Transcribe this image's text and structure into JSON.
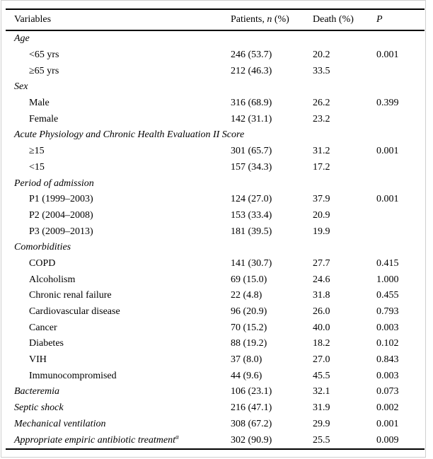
{
  "figure": {
    "background": "#ffffff",
    "rule_color": "#000000",
    "frame_color": "#cfcfcf"
  },
  "table": {
    "header": {
      "variables": "Variables",
      "patients_pre": "Patients, ",
      "patients_n": "n",
      "patients_post": " (%)",
      "death": "Death (%)",
      "p": "P"
    },
    "rows": [
      {
        "label": "Age",
        "style": "category",
        "patients": "",
        "death": "",
        "p": "",
        "sup": ""
      },
      {
        "label": "<65 yrs",
        "style": "sub",
        "patients": "246 (53.7)",
        "death": "20.2",
        "p": "0.001",
        "sup": ""
      },
      {
        "label": "≥65 yrs",
        "style": "sub",
        "patients": "212 (46.3)",
        "death": "33.5",
        "p": "",
        "sup": ""
      },
      {
        "label": "Sex",
        "style": "category",
        "patients": "",
        "death": "",
        "p": "",
        "sup": ""
      },
      {
        "label": "Male",
        "style": "sub",
        "patients": "316 (68.9)",
        "death": "26.2",
        "p": "0.399",
        "sup": ""
      },
      {
        "label": "Female",
        "style": "sub",
        "patients": "142 (31.1)",
        "death": "23.2",
        "p": "",
        "sup": ""
      },
      {
        "label": "Acute Physiology and Chronic Health Evaluation II Score",
        "style": "category",
        "patients": "",
        "death": "",
        "p": "",
        "sup": ""
      },
      {
        "label": "≥15",
        "style": "sub",
        "patients": "301 (65.7)",
        "death": "31.2",
        "p": "0.001",
        "sup": ""
      },
      {
        "label": "<15",
        "style": "sub",
        "patients": "157 (34.3)",
        "death": "17.2",
        "p": "",
        "sup": ""
      },
      {
        "label": "Period of admission",
        "style": "category",
        "patients": "",
        "death": "",
        "p": "",
        "sup": ""
      },
      {
        "label": "P1 (1999–2003)",
        "style": "sub",
        "patients": "124 (27.0)",
        "death": "37.9",
        "p": "0.001",
        "sup": ""
      },
      {
        "label": "P2 (2004–2008)",
        "style": "sub",
        "patients": "153 (33.4)",
        "death": "20.9",
        "p": "",
        "sup": ""
      },
      {
        "label": "P3 (2009–2013)",
        "style": "sub",
        "patients": "181 (39.5)",
        "death": "19.9",
        "p": "",
        "sup": ""
      },
      {
        "label": "Comorbidities",
        "style": "category",
        "patients": "",
        "death": "",
        "p": "",
        "sup": ""
      },
      {
        "label": "COPD",
        "style": "sub",
        "patients": "141 (30.7)",
        "death": "27.7",
        "p": "0.415",
        "sup": ""
      },
      {
        "label": "Alcoholism",
        "style": "sub",
        "patients": "69 (15.0)",
        "death": "24.6",
        "p": "1.000",
        "sup": ""
      },
      {
        "label": "Chronic renal failure",
        "style": "sub",
        "patients": "22 (4.8)",
        "death": "31.8",
        "p": "0.455",
        "sup": ""
      },
      {
        "label": "Cardiovascular disease",
        "style": "sub",
        "patients": "96 (20.9)",
        "death": "26.0",
        "p": "0.793",
        "sup": ""
      },
      {
        "label": "Cancer",
        "style": "sub",
        "patients": "70 (15.2)",
        "death": "40.0",
        "p": "0.003",
        "sup": ""
      },
      {
        "label": "Diabetes",
        "style": "sub",
        "patients": "88 (19.2)",
        "death": "18.2",
        "p": "0.102",
        "sup": ""
      },
      {
        "label": "VIH",
        "style": "sub",
        "patients": "37 (8.0)",
        "death": "27.0",
        "p": "0.843",
        "sup": ""
      },
      {
        "label": "Immunocompromised",
        "style": "sub",
        "patients": "44 (9.6)",
        "death": "45.5",
        "p": "0.003",
        "sup": ""
      },
      {
        "label": "Bacteremia",
        "style": "main",
        "patients": "106 (23.1)",
        "death": "32.1",
        "p": "0.073",
        "sup": ""
      },
      {
        "label": "Septic shock",
        "style": "main",
        "patients": "216 (47.1)",
        "death": "31.9",
        "p": "0.002",
        "sup": ""
      },
      {
        "label": "Mechanical ventilation",
        "style": "main",
        "patients": "308 (67.2)",
        "death": "29.9",
        "p": "0.001",
        "sup": ""
      },
      {
        "label": "Appropriate empiric antibiotic treatment",
        "style": "main",
        "patients": "302 (90.9)",
        "death": "25.5",
        "p": "0.009",
        "sup": "a"
      }
    ]
  }
}
